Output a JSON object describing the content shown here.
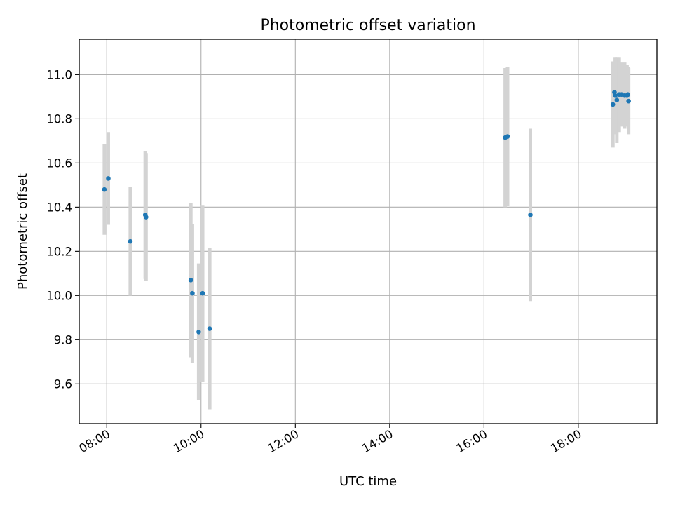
{
  "chart_data": {
    "type": "scatter",
    "title": "Photometric offset variation",
    "xlabel": "UTC time",
    "ylabel": "Photometric offset",
    "x_unit": "time of day (HH:MM, UTC)",
    "xlim": [
      "07:25",
      "19:40"
    ],
    "ylim": [
      9.42,
      11.16
    ],
    "x_ticks": [
      "08:00",
      "10:00",
      "12:00",
      "14:00",
      "16:00",
      "18:00"
    ],
    "y_ticks": [
      "9.6",
      "9.8",
      "10.0",
      "10.2",
      "10.4",
      "10.6",
      "10.8",
      "11.0"
    ],
    "grid": true,
    "marker_color": "#1f77b4",
    "errorbar_color": "#d3d3d3",
    "points": [
      {
        "x": "07:57",
        "y": 10.48,
        "err": 0.205
      },
      {
        "x": "08:02",
        "y": 10.53,
        "err": 0.21
      },
      {
        "x": "08:30",
        "y": 10.245,
        "err": 0.245
      },
      {
        "x": "08:49",
        "y": 10.365,
        "err": 0.29
      },
      {
        "x": "08:50",
        "y": 10.355,
        "err": 0.29
      },
      {
        "x": "09:47",
        "y": 10.07,
        "err": 0.35
      },
      {
        "x": "09:49",
        "y": 10.01,
        "err": 0.315
      },
      {
        "x": "09:57",
        "y": 9.835,
        "err": 0.31
      },
      {
        "x": "10:02",
        "y": 10.01,
        "err": 0.4
      },
      {
        "x": "10:11",
        "y": 9.85,
        "err": 0.365
      },
      {
        "x": "16:27",
        "y": 10.715,
        "err": 0.315
      },
      {
        "x": "16:30",
        "y": 10.72,
        "err": 0.315
      },
      {
        "x": "16:59",
        "y": 10.365,
        "err": 0.39
      },
      {
        "x": "18:44",
        "y": 10.865,
        "err": 0.195
      },
      {
        "x": "18:46",
        "y": 10.92,
        "err": 0.14
      },
      {
        "x": "18:47",
        "y": 10.905,
        "err": 0.175
      },
      {
        "x": "18:49",
        "y": 10.885,
        "err": 0.195
      },
      {
        "x": "18:52",
        "y": 10.91,
        "err": 0.17
      },
      {
        "x": "18:55",
        "y": 10.91,
        "err": 0.145
      },
      {
        "x": "18:59",
        "y": 10.905,
        "err": 0.15
      },
      {
        "x": "19:02",
        "y": 10.905,
        "err": 0.14
      },
      {
        "x": "19:03",
        "y": 10.91,
        "err": 0.125
      },
      {
        "x": "19:04",
        "y": 10.88,
        "err": 0.15
      }
    ]
  }
}
